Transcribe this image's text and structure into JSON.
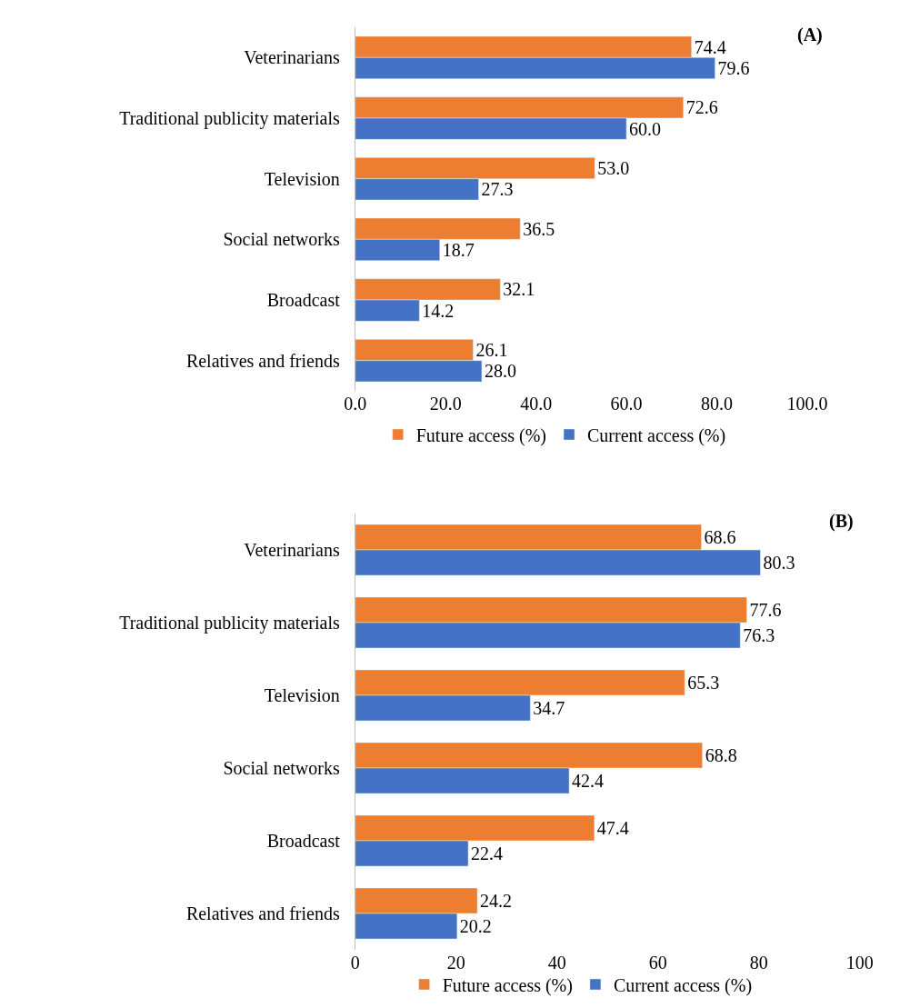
{
  "chart_data": [
    {
      "type": "bar",
      "title": "(A)",
      "orientation": "horizontal",
      "categories": [
        "Veterinarians",
        "Traditional publicity materials",
        "Television",
        "Social networks",
        "Broadcast",
        "Relatives and friends"
      ],
      "series": [
        {
          "name": "Future access (%)",
          "color": "#ed7d31",
          "values": [
            74.4,
            72.6,
            53.0,
            36.5,
            32.1,
            26.1
          ],
          "value_labels": [
            "74.4",
            "72.6",
            "53.0",
            "36.5",
            "32.1",
            "26.1"
          ]
        },
        {
          "name": "Current access (%)",
          "color": "#4472c4",
          "values": [
            79.6,
            60.0,
            27.3,
            18.7,
            14.2,
            28.0
          ],
          "value_labels": [
            "79.6",
            "60.0",
            "27.3",
            "18.7",
            "14.2",
            "28.0"
          ]
        }
      ],
      "xlim": [
        0,
        100
      ],
      "xticks": [
        {
          "value": 0,
          "label": "0.0"
        },
        {
          "value": 20,
          "label": "20.0"
        },
        {
          "value": 40,
          "label": "40.0"
        },
        {
          "value": 60,
          "label": "60.0"
        },
        {
          "value": 80,
          "label": "80.0"
        },
        {
          "value": 100,
          "label": "100.0"
        }
      ],
      "grid": false,
      "legend": "bottom"
    },
    {
      "type": "bar",
      "title": "(B)",
      "orientation": "horizontal",
      "categories": [
        "Veterinarians",
        "Traditional publicity materials",
        "Television",
        "Social networks",
        "Broadcast",
        "Relatives and friends"
      ],
      "series": [
        {
          "name": "Future access (%)",
          "color": "#ed7d31",
          "values": [
            68.6,
            77.6,
            65.3,
            68.8,
            47.4,
            24.2
          ],
          "value_labels": [
            "68.6",
            "77.6",
            "65.3",
            "68.8",
            "47.4",
            "24.2"
          ]
        },
        {
          "name": "Current access (%)",
          "color": "#4472c4",
          "values": [
            80.3,
            76.3,
            34.7,
            42.4,
            22.4,
            20.2
          ],
          "value_labels": [
            "80.3",
            "76.3",
            "34.7",
            "42.4",
            "22.4",
            "20.2"
          ]
        }
      ],
      "xlim": [
        0,
        100
      ],
      "xticks": [
        0,
        20,
        40,
        60,
        80,
        100
      ],
      "grid": false,
      "legend": "bottom"
    }
  ]
}
